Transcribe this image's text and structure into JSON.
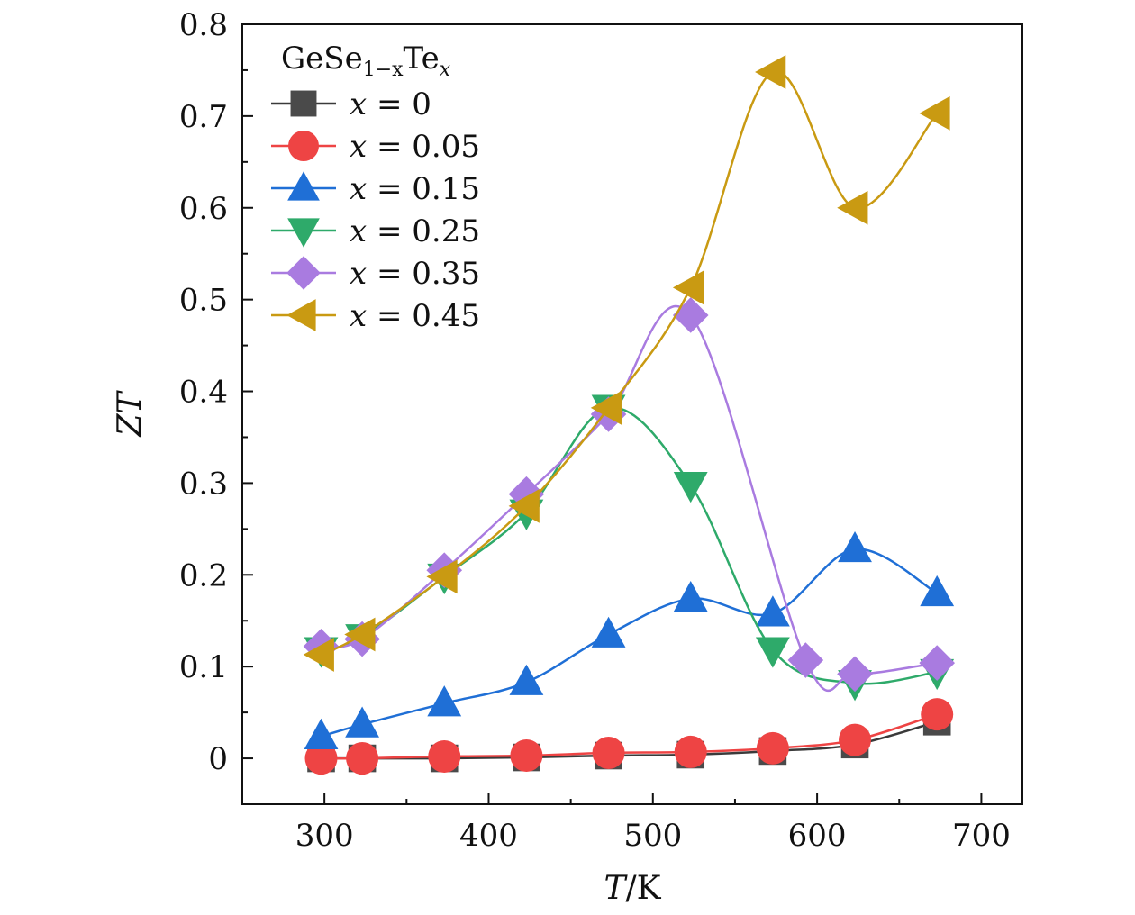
{
  "chart_data": {
    "type": "scatter",
    "xlabel_var": "T",
    "xlabel_unit": "/K",
    "ylabel": "ZT",
    "xlim": [
      250,
      725
    ],
    "ylim": [
      -0.05,
      0.8
    ],
    "xticks": [
      "300",
      "400",
      "500",
      "600",
      "700"
    ],
    "xtick_values": [
      300,
      400,
      500,
      600,
      700
    ],
    "yticks": [
      "0",
      "0.1",
      "0.2",
      "0.3",
      "0.4",
      "0.5",
      "0.6",
      "0.7",
      "0.8"
    ],
    "ytick_values": [
      0,
      0.1,
      0.2,
      0.3,
      0.4,
      0.5,
      0.6,
      0.7,
      0.8
    ],
    "legend_title": "GeSe",
    "legend_title_sub": "1−x",
    "legend_title_mid": "Te",
    "legend_title_sub2": "x",
    "legend_position": "top-left",
    "grid": false,
    "series": [
      {
        "name": "x = 0",
        "label_var": "x",
        "label_eq": "= 0",
        "marker": "square",
        "color": "#4a4a4a",
        "line_color": "#3a3a3a",
        "points": [
          [
            298,
            0
          ],
          [
            323,
            0
          ],
          [
            373,
            0
          ],
          [
            423,
            0.001
          ],
          [
            473,
            0.003
          ],
          [
            523,
            0.004
          ],
          [
            573,
            0.008
          ],
          [
            623,
            0.015
          ],
          [
            673,
            0.04
          ]
        ]
      },
      {
        "name": "x = 0.05",
        "label_var": "x",
        "label_eq": "= 0.05",
        "marker": "circle",
        "color": "#ee4444",
        "line_color": "#ee4444",
        "points": [
          [
            298,
            0
          ],
          [
            323,
            0
          ],
          [
            373,
            0.002
          ],
          [
            423,
            0.003
          ],
          [
            473,
            0.006
          ],
          [
            523,
            0.007
          ],
          [
            573,
            0.011
          ],
          [
            623,
            0.02
          ],
          [
            673,
            0.048
          ]
        ]
      },
      {
        "name": "x = 0.15",
        "label_var": "x",
        "label_eq": "= 0.15",
        "marker": "triangle-up",
        "color": "#1f6fd6",
        "line_color": "#1f6fd6",
        "points": [
          [
            298,
            0.024
          ],
          [
            323,
            0.037
          ],
          [
            373,
            0.06
          ],
          [
            423,
            0.083
          ],
          [
            473,
            0.135
          ],
          [
            523,
            0.174
          ],
          [
            573,
            0.158
          ],
          [
            623,
            0.228
          ],
          [
            673,
            0.18
          ]
        ]
      },
      {
        "name": "x = 0.25",
        "label_var": "x",
        "label_eq": "= 0.25",
        "marker": "triangle-down",
        "color": "#2eaa6a",
        "line_color": "#2eaa6a",
        "points": [
          [
            298,
            0.118
          ],
          [
            323,
            0.132
          ],
          [
            373,
            0.198
          ],
          [
            423,
            0.268
          ],
          [
            473,
            0.382
          ],
          [
            523,
            0.298
          ],
          [
            573,
            0.118
          ],
          [
            623,
            0.082
          ],
          [
            673,
            0.094
          ]
        ]
      },
      {
        "name": "x = 0.35",
        "label_var": "x",
        "label_eq": "= 0.35",
        "marker": "diamond",
        "color": "#a97be0",
        "line_color": "#a97be0",
        "points": [
          [
            298,
            0.122
          ],
          [
            323,
            0.13
          ],
          [
            373,
            0.205
          ],
          [
            423,
            0.288
          ],
          [
            473,
            0.375
          ],
          [
            523,
            0.483
          ],
          [
            593,
            0.107
          ],
          [
            623,
            0.092
          ],
          [
            673,
            0.104
          ]
        ]
      },
      {
        "name": "x = 0.45",
        "label_var": "x",
        "label_eq": "= 0.45",
        "marker": "triangle-left",
        "color": "#c99a12",
        "line_color": "#c99a12",
        "points": [
          [
            298,
            0.113
          ],
          [
            323,
            0.135
          ],
          [
            373,
            0.198
          ],
          [
            423,
            0.275
          ],
          [
            473,
            0.382
          ],
          [
            523,
            0.513
          ],
          [
            573,
            0.748
          ],
          [
            623,
            0.6
          ],
          [
            673,
            0.703
          ]
        ]
      }
    ]
  }
}
